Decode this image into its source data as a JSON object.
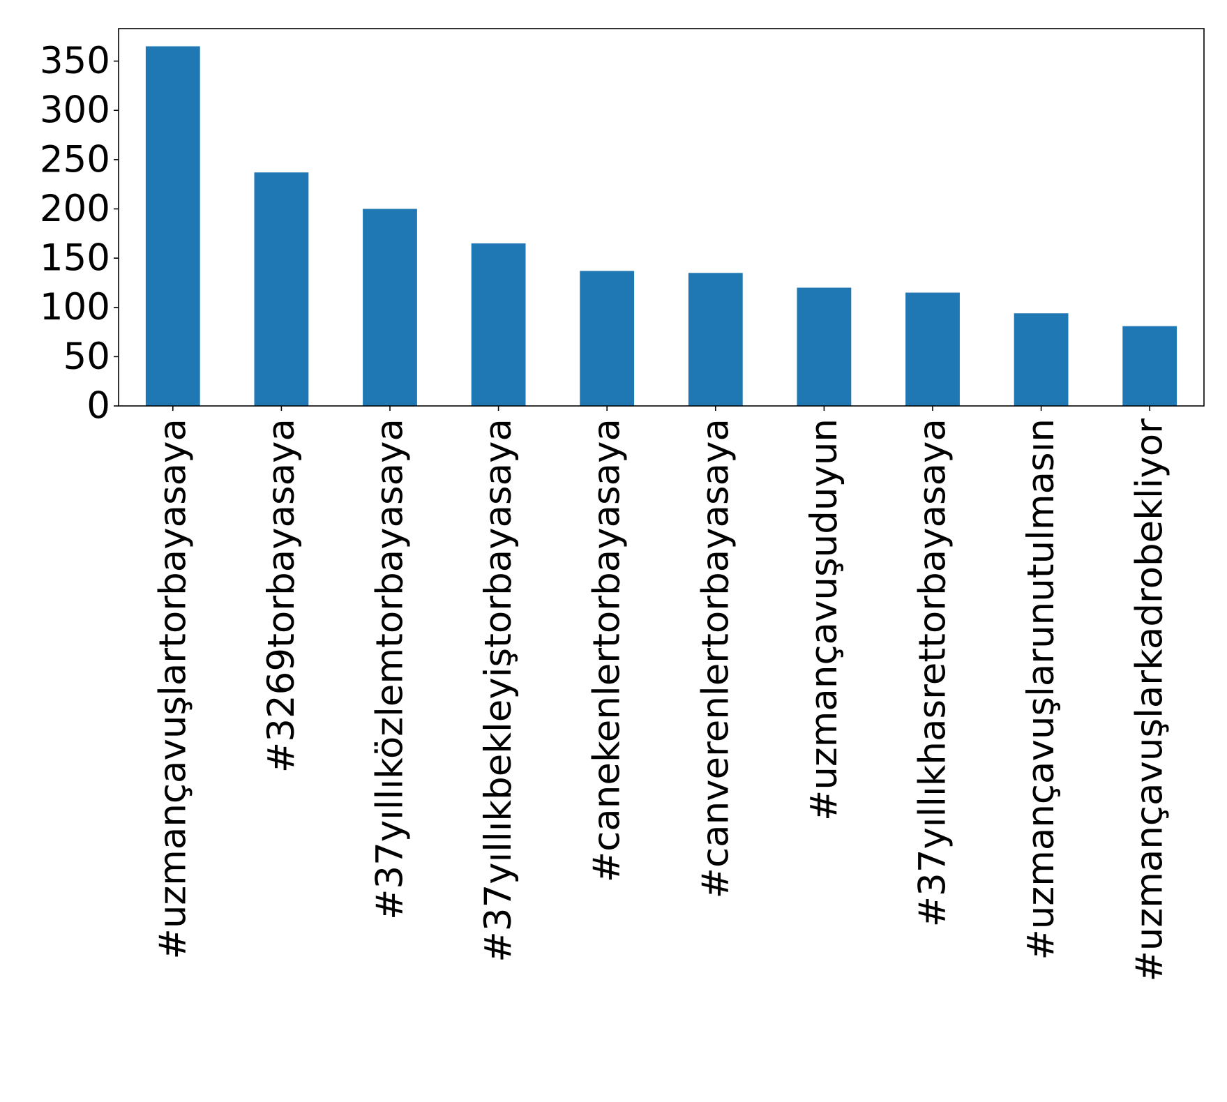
{
  "chart_data": {
    "type": "bar",
    "title": "",
    "xlabel": "",
    "ylabel": "",
    "categories": [
      "#uzmançavuşlartorbayasaya",
      "#3269torbayasaya",
      "#37yıllıközlemtorbayasaya",
      "#37yıllıkbekleyiştorbayasaya",
      "#canekenlertorbayasaya",
      "#canverenlertorbayasaya",
      "#uzmançavuşuduyun",
      "#37yıllıkhasrettorbayasaya",
      "#uzmançavuşlarunutulmasın",
      "#uzmançavuşlarkadrobekliyor"
    ],
    "values": [
      365,
      237,
      200,
      165,
      137,
      135,
      120,
      115,
      94,
      81
    ],
    "ylim": [
      0,
      383
    ],
    "yticks": [
      0,
      50,
      100,
      150,
      200,
      250,
      300,
      350
    ],
    "ytick_labels": [
      "0",
      "50",
      "100",
      "150",
      "200",
      "250",
      "300",
      "350"
    ],
    "grid": false,
    "legend": "none",
    "bar_color": "#1f77b4"
  }
}
